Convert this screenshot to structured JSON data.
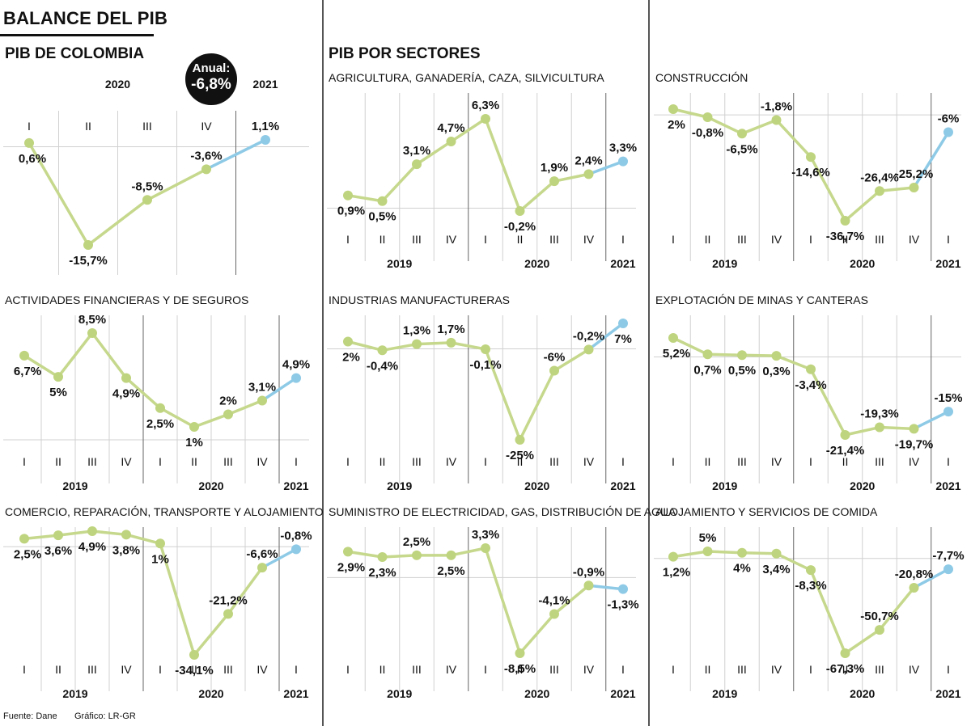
{
  "header": {
    "title": "BALANCE DEL PIB",
    "left_title": "PIB DE COLOMBIA",
    "right_title": "PIB POR SECTORES",
    "badge_line1": "Anual:",
    "badge_line2": "-6,8%"
  },
  "footer": {
    "source": "Fuente: Dane",
    "credit": "Gráfico: LR-GR"
  },
  "colors": {
    "line": "#c5d88c",
    "point": "#bfd47e",
    "highlight": "#8ecae6",
    "grid": "#d0d0d0",
    "separator": "#555555"
  },
  "chart_data": [
    {
      "type": "line",
      "title": "",
      "x": [
        "I",
        "II",
        "III",
        "IV",
        "I"
      ],
      "years": [
        {
          "label": "2020",
          "start": 0,
          "end": 3
        },
        {
          "label": "2021",
          "start": 4,
          "end": 4
        }
      ],
      "values": [
        0.6,
        -15.7,
        -8.5,
        -3.6,
        1.1
      ],
      "labels": [
        "0,6%",
        "-15,7%",
        "-8,5%",
        "-3,6%",
        "1,1%"
      ],
      "highlight_last": true
    },
    {
      "type": "line",
      "title": "AGRICULTURA, GANADERÍA, CAZA, SILVICULTURA",
      "x": [
        "I",
        "II",
        "III",
        "IV",
        "I",
        "II",
        "III",
        "IV",
        "I"
      ],
      "years": [
        {
          "label": "2019",
          "start": 0,
          "end": 3
        },
        {
          "label": "2020",
          "start": 4,
          "end": 7
        },
        {
          "label": "2021",
          "start": 8,
          "end": 8
        }
      ],
      "values": [
        0.9,
        0.5,
        3.1,
        4.7,
        6.3,
        -0.2,
        1.9,
        2.4,
        3.3
      ],
      "labels": [
        "0,9%",
        "0,5%",
        "3,1%",
        "4,7%",
        "6,3%",
        "-0,2%",
        "1,9%",
        "2,4%",
        "3,3%"
      ],
      "highlight_last": true
    },
    {
      "type": "line",
      "title": "CONSTRUCCIÓN",
      "x": [
        "I",
        "II",
        "III",
        "IV",
        "I",
        "II",
        "III",
        "IV",
        "I"
      ],
      "years": [
        {
          "label": "2019",
          "start": 0,
          "end": 3
        },
        {
          "label": "2020",
          "start": 4,
          "end": 7
        },
        {
          "label": "2021",
          "start": 8,
          "end": 8
        }
      ],
      "values": [
        2,
        -0.8,
        -6.5,
        -1.8,
        -14.6,
        -36.7,
        -26.4,
        -25.2,
        -6
      ],
      "labels": [
        "2%",
        "-0,8%",
        "-6,5%",
        "-1,8%",
        "-14,6%",
        "-36,7%",
        "-26,4%",
        "-25,2%",
        "-6%"
      ],
      "highlight_last": true
    },
    {
      "type": "line",
      "title": "ACTIVIDADES FINANCIERAS Y DE SEGUROS",
      "x": [
        "I",
        "II",
        "III",
        "IV",
        "I",
        "II",
        "III",
        "IV",
        "I"
      ],
      "years": [
        {
          "label": "2019",
          "start": 0,
          "end": 3
        },
        {
          "label": "2020",
          "start": 4,
          "end": 7
        },
        {
          "label": "2021",
          "start": 8,
          "end": 8
        }
      ],
      "values": [
        6.7,
        5,
        8.5,
        4.9,
        2.5,
        1,
        2,
        3.1,
        4.9
      ],
      "labels": [
        "6,7%",
        "5%",
        "8,5%",
        "4,9%",
        "2,5%",
        "1%",
        "2%",
        "3,1%",
        "4,9%"
      ],
      "highlight_last": true
    },
    {
      "type": "line",
      "title": "INDUSTRIAS MANUFACTURERAS",
      "x": [
        "I",
        "II",
        "III",
        "IV",
        "I",
        "II",
        "III",
        "IV",
        "I"
      ],
      "years": [
        {
          "label": "2019",
          "start": 0,
          "end": 3
        },
        {
          "label": "2020",
          "start": 4,
          "end": 7
        },
        {
          "label": "2021",
          "start": 8,
          "end": 8
        }
      ],
      "values": [
        2,
        -0.4,
        1.3,
        1.7,
        -0.1,
        -25,
        -6,
        -0.2,
        7
      ],
      "labels": [
        "2%",
        "-0,4%",
        "1,3%",
        "1,7%",
        "-0,1%",
        "-25%",
        "-6%",
        "-0,2%",
        "7%"
      ],
      "highlight_last": true
    },
    {
      "type": "line",
      "title": "EXPLOTACIÓN DE MINAS Y CANTERAS",
      "x": [
        "I",
        "II",
        "III",
        "IV",
        "I",
        "II",
        "III",
        "IV",
        "I"
      ],
      "years": [
        {
          "label": "2019",
          "start": 0,
          "end": 3
        },
        {
          "label": "2020",
          "start": 4,
          "end": 7
        },
        {
          "label": "2021",
          "start": 8,
          "end": 8
        }
      ],
      "values": [
        5.2,
        0.7,
        0.5,
        0.3,
        -3.4,
        -21.4,
        -19.3,
        -19.7,
        -15
      ],
      "labels": [
        "5,2%",
        "0,7%",
        "0,5%",
        "0,3%",
        "-3,4%",
        "-21,4%",
        "-19,3%",
        "-19,7%",
        "-15%"
      ],
      "highlight_last": true
    },
    {
      "type": "line",
      "title": "COMERCIO, REPARACIÓN, TRANSPORTE Y ALOJAMIENTO",
      "x": [
        "I",
        "II",
        "III",
        "IV",
        "I",
        "II",
        "III",
        "IV",
        "I"
      ],
      "years": [
        {
          "label": "2019",
          "start": 0,
          "end": 3
        },
        {
          "label": "2020",
          "start": 4,
          "end": 7
        },
        {
          "label": "2021",
          "start": 8,
          "end": 8
        }
      ],
      "values": [
        2.5,
        3.6,
        4.9,
        3.8,
        1,
        -34.1,
        -21.2,
        -6.6,
        -0.8
      ],
      "labels": [
        "2,5%",
        "3,6%",
        "4,9%",
        "3,8%",
        "1%",
        "-34,1%",
        "-21,2%",
        "-6,6%",
        "-0,8%"
      ],
      "highlight_last": true
    },
    {
      "type": "line",
      "title": "SUMINISTRO DE ELECTRICIDAD, GAS, DISTRIBUCIÓN DE AGUA",
      "x": [
        "I",
        "II",
        "III",
        "IV",
        "I",
        "II",
        "III",
        "IV",
        "I"
      ],
      "years": [
        {
          "label": "2019",
          "start": 0,
          "end": 3
        },
        {
          "label": "2020",
          "start": 4,
          "end": 7
        },
        {
          "label": "2021",
          "start": 8,
          "end": 8
        }
      ],
      "values": [
        2.9,
        2.3,
        2.5,
        2.5,
        3.3,
        -8.5,
        -4.1,
        -0.9,
        -1.3
      ],
      "labels": [
        "2,9%",
        "2,3%",
        "2,5%",
        "2,5%",
        "3,3%",
        "-8,5%",
        "-4,1%",
        "-0,9%",
        "-1,3%"
      ],
      "highlight_last": true
    },
    {
      "type": "line",
      "title": "ALOJAMIENTO Y SERVICIOS DE COMIDA",
      "x": [
        "I",
        "II",
        "III",
        "IV",
        "I",
        "II",
        "III",
        "IV",
        "I"
      ],
      "years": [
        {
          "label": "2019",
          "start": 0,
          "end": 3
        },
        {
          "label": "2020",
          "start": 4,
          "end": 7
        },
        {
          "label": "2021",
          "start": 8,
          "end": 8
        }
      ],
      "values": [
        1.2,
        5,
        4,
        3.4,
        -8.3,
        -67.3,
        -50.7,
        -20.8,
        -7.7
      ],
      "labels": [
        "1,2%",
        "5%",
        "4%",
        "3,4%",
        "-8,3%",
        "-67,3%",
        "-50,7%",
        "-20,8%",
        "-7,7%"
      ],
      "highlight_last": true
    }
  ]
}
